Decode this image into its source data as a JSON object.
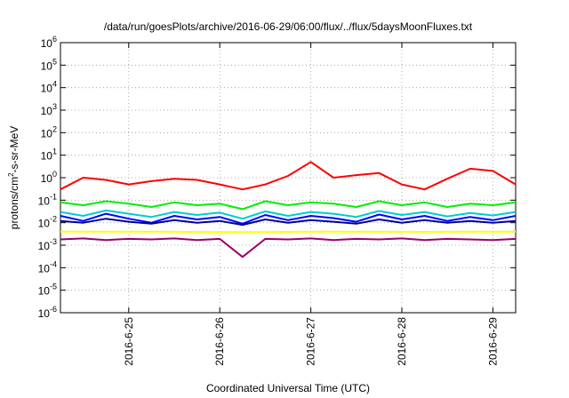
{
  "chart_data": {
    "type": "line",
    "title": "/data/run/goesPlots/archive/2016-06-29/06:00/flux/../flux/5daysMoonFluxes.txt",
    "xlabel": "Coordinated Universal Time (UTC)",
    "ylabel": {
      "pre": "protons/cm",
      "sup": "2",
      "post": "-s-sr-MeV"
    },
    "y_scale": "log",
    "ylim": [
      1e-06,
      1000000.0
    ],
    "y_ticks": [
      {
        "base": "10",
        "exp": "-6"
      },
      {
        "base": "10",
        "exp": "-5"
      },
      {
        "base": "10",
        "exp": "-4"
      },
      {
        "base": "10",
        "exp": "-3"
      },
      {
        "base": "10",
        "exp": "-2"
      },
      {
        "base": "10",
        "exp": "-1"
      },
      {
        "base": "10",
        "exp": "0"
      },
      {
        "base": "10",
        "exp": "1"
      },
      {
        "base": "10",
        "exp": "2"
      },
      {
        "base": "10",
        "exp": "3"
      },
      {
        "base": "10",
        "exp": "4"
      },
      {
        "base": "10",
        "exp": "5"
      },
      {
        "base": "10",
        "exp": "6"
      }
    ],
    "xlim": [
      "2016-06-24 06:00",
      "2016-06-29 06:00"
    ],
    "x_ticks": [
      "2016-6-25",
      "2016-6-26",
      "2016-6-27",
      "2016-6-28",
      "2016-6-29"
    ],
    "grid": true,
    "legend": "none",
    "series": [
      {
        "color": "#ff0000",
        "x": [
          "2016-06-24 06:00",
          "2016-06-24 12:00",
          "2016-06-24 18:00",
          "2016-06-25 00:00",
          "2016-06-25 06:00",
          "2016-06-25 12:00",
          "2016-06-25 18:00",
          "2016-06-26 00:00",
          "2016-06-26 06:00",
          "2016-06-26 12:00",
          "2016-06-26 18:00",
          "2016-06-27 00:00",
          "2016-06-27 06:00",
          "2016-06-27 12:00",
          "2016-06-27 18:00",
          "2016-06-28 00:00",
          "2016-06-28 06:00",
          "2016-06-28 12:00",
          "2016-06-28 18:00",
          "2016-06-29 00:00",
          "2016-06-29 06:00"
        ],
        "y": [
          0.3,
          1.0,
          0.8,
          0.5,
          0.7,
          0.9,
          0.8,
          0.5,
          0.3,
          0.5,
          1.2,
          5.0,
          1.0,
          1.3,
          1.6,
          0.5,
          0.3,
          0.9,
          2.5,
          2.0,
          0.5
        ]
      },
      {
        "color": "#00ee00",
        "x": [
          "2016-06-24 06:00",
          "2016-06-24 12:00",
          "2016-06-24 18:00",
          "2016-06-25 00:00",
          "2016-06-25 06:00",
          "2016-06-25 12:00",
          "2016-06-25 18:00",
          "2016-06-26 00:00",
          "2016-06-26 06:00",
          "2016-06-26 12:00",
          "2016-06-26 18:00",
          "2016-06-27 00:00",
          "2016-06-27 06:00",
          "2016-06-27 12:00",
          "2016-06-27 18:00",
          "2016-06-28 00:00",
          "2016-06-28 06:00",
          "2016-06-28 12:00",
          "2016-06-28 18:00",
          "2016-06-29 00:00",
          "2016-06-29 06:00"
        ],
        "y": [
          0.08,
          0.06,
          0.09,
          0.07,
          0.05,
          0.08,
          0.06,
          0.07,
          0.04,
          0.09,
          0.06,
          0.08,
          0.07,
          0.05,
          0.09,
          0.06,
          0.08,
          0.05,
          0.07,
          0.06,
          0.08
        ]
      },
      {
        "color": "#00cccc",
        "x": [
          "2016-06-24 06:00",
          "2016-06-24 12:00",
          "2016-06-24 18:00",
          "2016-06-25 00:00",
          "2016-06-25 06:00",
          "2016-06-25 12:00",
          "2016-06-25 18:00",
          "2016-06-26 00:00",
          "2016-06-26 06:00",
          "2016-06-26 12:00",
          "2016-06-26 18:00",
          "2016-06-27 00:00",
          "2016-06-27 06:00",
          "2016-06-27 12:00",
          "2016-06-27 18:00",
          "2016-06-28 00:00",
          "2016-06-28 06:00",
          "2016-06-28 12:00",
          "2016-06-28 18:00",
          "2016-06-29 00:00",
          "2016-06-29 06:00"
        ],
        "y": [
          0.03,
          0.02,
          0.035,
          0.025,
          0.018,
          0.03,
          0.022,
          0.028,
          0.015,
          0.032,
          0.02,
          0.03,
          0.025,
          0.018,
          0.033,
          0.022,
          0.03,
          0.019,
          0.027,
          0.021,
          0.03
        ]
      },
      {
        "color": "#0000ff",
        "x": [
          "2016-06-24 06:00",
          "2016-06-24 12:00",
          "2016-06-24 18:00",
          "2016-06-25 00:00",
          "2016-06-25 06:00",
          "2016-06-25 12:00",
          "2016-06-25 18:00",
          "2016-06-26 00:00",
          "2016-06-26 06:00",
          "2016-06-26 12:00",
          "2016-06-26 18:00",
          "2016-06-27 00:00",
          "2016-06-27 06:00",
          "2016-06-27 12:00",
          "2016-06-27 18:00",
          "2016-06-28 00:00",
          "2016-06-28 06:00",
          "2016-06-28 12:00",
          "2016-06-28 18:00",
          "2016-06-29 00:00",
          "2016-06-29 06:00"
        ],
        "y": [
          0.02,
          0.012,
          0.025,
          0.015,
          0.01,
          0.02,
          0.014,
          0.018,
          0.009,
          0.022,
          0.013,
          0.02,
          0.016,
          0.011,
          0.023,
          0.014,
          0.02,
          0.012,
          0.018,
          0.013,
          0.02
        ]
      },
      {
        "color": "#000099",
        "x": [
          "2016-06-24 06:00",
          "2016-06-24 12:00",
          "2016-06-24 18:00",
          "2016-06-25 00:00",
          "2016-06-25 06:00",
          "2016-06-25 12:00",
          "2016-06-25 18:00",
          "2016-06-26 00:00",
          "2016-06-26 06:00",
          "2016-06-26 12:00",
          "2016-06-26 18:00",
          "2016-06-27 00:00",
          "2016-06-27 06:00",
          "2016-06-27 12:00",
          "2016-06-27 18:00",
          "2016-06-28 00:00",
          "2016-06-28 06:00",
          "2016-06-28 12:00",
          "2016-06-28 18:00",
          "2016-06-29 00:00",
          "2016-06-29 06:00"
        ],
        "y": [
          0.012,
          0.01,
          0.015,
          0.011,
          0.009,
          0.013,
          0.01,
          0.012,
          0.008,
          0.014,
          0.01,
          0.013,
          0.011,
          0.009,
          0.014,
          0.01,
          0.013,
          0.01,
          0.012,
          0.01,
          0.012
        ]
      },
      {
        "color": "#ffff00",
        "x": [
          "2016-06-24 06:00",
          "2016-06-25 06:00",
          "2016-06-26 06:00",
          "2016-06-27 06:00",
          "2016-06-28 06:00",
          "2016-06-29 06:00"
        ],
        "y": [
          0.004,
          0.004,
          0.0038,
          0.004,
          0.0039,
          0.004
        ]
      },
      {
        "color": "#990066",
        "x": [
          "2016-06-24 06:00",
          "2016-06-24 12:00",
          "2016-06-24 18:00",
          "2016-06-25 00:00",
          "2016-06-25 06:00",
          "2016-06-25 12:00",
          "2016-06-25 18:00",
          "2016-06-26 00:00",
          "2016-06-26 06:00",
          "2016-06-26 12:00",
          "2016-06-26 18:00",
          "2016-06-27 00:00",
          "2016-06-27 06:00",
          "2016-06-27 12:00",
          "2016-06-27 18:00",
          "2016-06-28 00:00",
          "2016-06-28 06:00",
          "2016-06-28 12:00",
          "2016-06-28 18:00",
          "2016-06-29 00:00",
          "2016-06-29 06:00"
        ],
        "y": [
          0.0018,
          0.002,
          0.0017,
          0.0019,
          0.0018,
          0.002,
          0.0017,
          0.0019,
          0.0003,
          0.0019,
          0.0018,
          0.002,
          0.0017,
          0.0019,
          0.0018,
          0.002,
          0.0017,
          0.0019,
          0.0018,
          0.0017,
          0.0019
        ]
      }
    ]
  }
}
